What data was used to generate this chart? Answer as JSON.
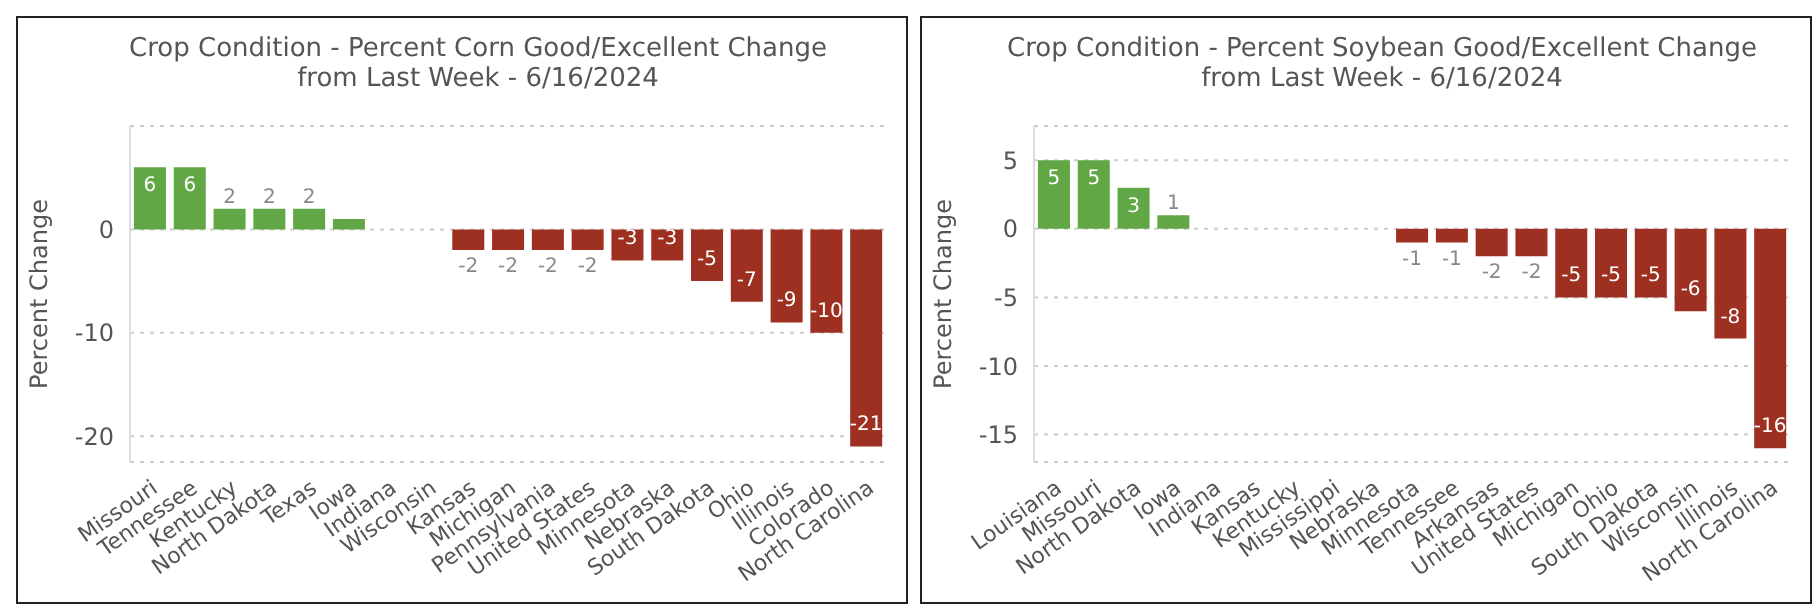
{
  "chart_data": [
    {
      "type": "bar",
      "title": "Crop Condition - Percent Corn Good/Excellent Change from Last Week - 6/16/2024",
      "ylabel": "Percent Change",
      "categories": [
        "Missouri",
        "Tennessee",
        "Kentucky",
        "North Dakota",
        "Texas",
        "Iowa",
        "Indiana",
        "Wisconsin",
        "Kansas",
        "Michigan",
        "Pennsylvania",
        "United States",
        "Minnesota",
        "Nebraska",
        "South Dakota",
        "Ohio",
        "Illinois",
        "Colorado",
        "North Carolina"
      ],
      "values": [
        6,
        6,
        2,
        2,
        2,
        1,
        0,
        0,
        -2,
        -2,
        -2,
        -2,
        -3,
        -3,
        -5,
        -7,
        -9,
        -10,
        -21
      ],
      "value_labels": [
        "6",
        "6",
        "2",
        "2",
        "2",
        null,
        null,
        null,
        "-2",
        "-2",
        "-2",
        "-2",
        "-3",
        "-3",
        "-5",
        "-7",
        "-9",
        "-10",
        "-21"
      ],
      "colors": [
        "#62a745",
        "#62a745",
        "#62a745",
        "#62a745",
        "#62a745",
        "#62a745",
        "#62a745",
        "#62a745",
        "#9e3022",
        "#9e3022",
        "#9e3022",
        "#9e3022",
        "#9e3022",
        "#9e3022",
        "#9e3022",
        "#9e3022",
        "#9e3022",
        "#9e3022",
        "#9e3022"
      ],
      "ylim": [
        -22.5,
        10
      ],
      "yticks": [
        -20,
        -10,
        0
      ],
      "grid": "y",
      "legend": false
    },
    {
      "type": "bar",
      "title": "Crop Condition - Percent Soybean Good/Excellent Change from Last Week - 6/16/2024",
      "ylabel": "Percent Change",
      "categories": [
        "Louisiana",
        "Missouri",
        "North Dakota",
        "Iowa",
        "Indiana",
        "Kansas",
        "Kentucky",
        "Mississippi",
        "Nebraska",
        "Minnesota",
        "Tennessee",
        "Arkansas",
        "United States",
        "Michigan",
        "Ohio",
        "South Dakota",
        "Wisconsin",
        "Illinois",
        "North Carolina"
      ],
      "values": [
        5,
        5,
        3,
        1,
        0,
        0,
        0,
        0,
        0,
        -1,
        -1,
        -2,
        -2,
        -5,
        -5,
        -5,
        -6,
        -8,
        -16
      ],
      "value_labels": [
        "5",
        "5",
        "3",
        "1",
        null,
        null,
        null,
        null,
        null,
        "-1",
        "-1",
        "-2",
        "-2",
        "-5",
        "-5",
        "-5",
        "-6",
        "-8",
        "-16"
      ],
      "colors": [
        "#62a745",
        "#62a745",
        "#62a745",
        "#62a745",
        "#62a745",
        "#62a745",
        "#62a745",
        "#62a745",
        "#62a745",
        "#9e3022",
        "#9e3022",
        "#9e3022",
        "#9e3022",
        "#9e3022",
        "#9e3022",
        "#9e3022",
        "#9e3022",
        "#9e3022",
        "#9e3022"
      ],
      "ylim": [
        -17,
        7.5
      ],
      "yticks": [
        -15,
        -10,
        -5,
        0,
        5
      ],
      "grid": "y",
      "legend": false
    }
  ]
}
